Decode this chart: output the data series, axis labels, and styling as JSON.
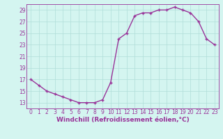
{
  "x": [
    0,
    1,
    2,
    3,
    4,
    5,
    6,
    7,
    8,
    9,
    10,
    11,
    12,
    13,
    14,
    15,
    16,
    17,
    18,
    19,
    20,
    21,
    22,
    23
  ],
  "y": [
    17,
    16,
    15,
    14.5,
    14,
    13.5,
    13,
    13,
    13,
    13.5,
    16.5,
    24,
    25,
    28,
    28.5,
    28.5,
    29,
    29,
    29.5,
    29,
    28.5,
    27,
    24,
    23
  ],
  "line_color": "#993399",
  "marker": "+",
  "bg_color": "#d4f5f0",
  "grid_color": "#b0ddd8",
  "text_color": "#993399",
  "xlabel": "Windchill (Refroidissement éolien,°C)",
  "ylim": [
    12,
    30
  ],
  "xlim": [
    -0.5,
    23.5
  ],
  "yticks": [
    13,
    15,
    17,
    19,
    21,
    23,
    25,
    27,
    29
  ],
  "xticks": [
    0,
    1,
    2,
    3,
    4,
    5,
    6,
    7,
    8,
    9,
    10,
    11,
    12,
    13,
    14,
    15,
    16,
    17,
    18,
    19,
    20,
    21,
    22,
    23
  ],
  "tick_fontsize": 5.5,
  "xlabel_fontsize": 6.5
}
